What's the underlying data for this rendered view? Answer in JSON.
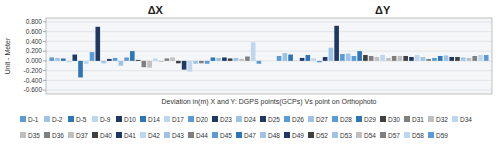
{
  "chart_data": {
    "type": "bar",
    "xlabel": "Deviation in(m) X and Y: DGPS points(GCPs) Vs point on Orthophoto",
    "ylabel": "Unit - Meter",
    "categories": [
      "D-1",
      "D-2",
      "D-5",
      "D-9",
      "D10",
      "D14",
      "D17",
      "D20",
      "D23",
      "D24",
      "D25",
      "D26",
      "D27",
      "D28",
      "D29",
      "D30",
      "D31",
      "D32",
      "D34",
      "D35",
      "D36",
      "D37",
      "D40",
      "D41",
      "D42",
      "D43",
      "D44",
      "D45",
      "D47",
      "D48",
      "D49",
      "D52",
      "D53",
      "D54",
      "D57",
      "D58",
      "D59"
    ],
    "colors": [
      "#5B9BD5",
      "#9DC3E6",
      "#2E75B6",
      "#BDD7EE",
      "#1F3864",
      "#2E75B6",
      "#BDD7EE",
      "#5B9BD5",
      "#1F3864",
      "#9DC3E6",
      "#1F3864",
      "#5B9BD5",
      "#9DC3E6",
      "#5B9BD5",
      "#2E75B6",
      "#404040",
      "#7f7f7f",
      "#C0C0C0",
      "#BDD7EE",
      "#C0C0C0",
      "#7f7f7f",
      "#C0C0C0",
      "#404040",
      "#1F3864",
      "#BDD7EE",
      "#9DC3E6",
      "#7f7f7f",
      "#5B9BD5",
      "#2E75B6",
      "#9DC3E6",
      "#1F3864",
      "#404040",
      "#9DC3E6",
      "#C0C0C0",
      "#7f7f7f",
      "#BDD7EE",
      "#5B9BD5"
    ],
    "series": [
      {
        "name": "ΔX",
        "values": [
          0.07,
          0.06,
          0.05,
          -0.03,
          0.13,
          -0.34,
          -0.06,
          0.18,
          0.7,
          -0.05,
          0.04,
          0.06,
          -0.1,
          0.07,
          0.2,
          0.02,
          -0.13,
          -0.14,
          0.05,
          -0.02,
          0.05,
          0.07,
          -0.05,
          -0.18,
          -0.22,
          -0.06,
          -0.05,
          -0.06,
          0.07,
          0.06,
          0.07,
          0.05,
          0.06,
          0.04,
          0.09,
          0.38,
          -0.06
        ]
      },
      {
        "name": "ΔY",
        "values": [
          0.1,
          0.16,
          0.13,
          0.01,
          0.06,
          0.12,
          0.05,
          -0.03,
          0.08,
          0.27,
          0.72,
          0.14,
          0.15,
          0.1,
          0.2,
          0.12,
          0.1,
          0.08,
          0.12,
          0.06,
          0.1,
          0.1,
          0.1,
          0.08,
          0.12,
          0.08,
          0.04,
          0.06,
          0.1,
          0.11,
          0.08,
          0.08,
          0.07,
          0.06,
          0.1,
          0.12,
          0.12
        ]
      }
    ],
    "ylim": [
      -0.68,
      0.88
    ],
    "yticks": [
      {
        "value": -0.6,
        "label": "-0.600"
      },
      {
        "value": -0.4,
        "label": "-0.400"
      },
      {
        "value": -0.2,
        "label": "-0.200"
      },
      {
        "value": 0,
        "label": "0.000"
      },
      {
        "value": 0.2,
        "label": "0.200"
      },
      {
        "value": 0.4,
        "label": "0.400"
      },
      {
        "value": 0.6,
        "label": "0.600"
      },
      {
        "value": 0.8,
        "label": "0.800"
      }
    ],
    "grid": true,
    "legend": "bottom",
    "tick_labels": "y"
  }
}
